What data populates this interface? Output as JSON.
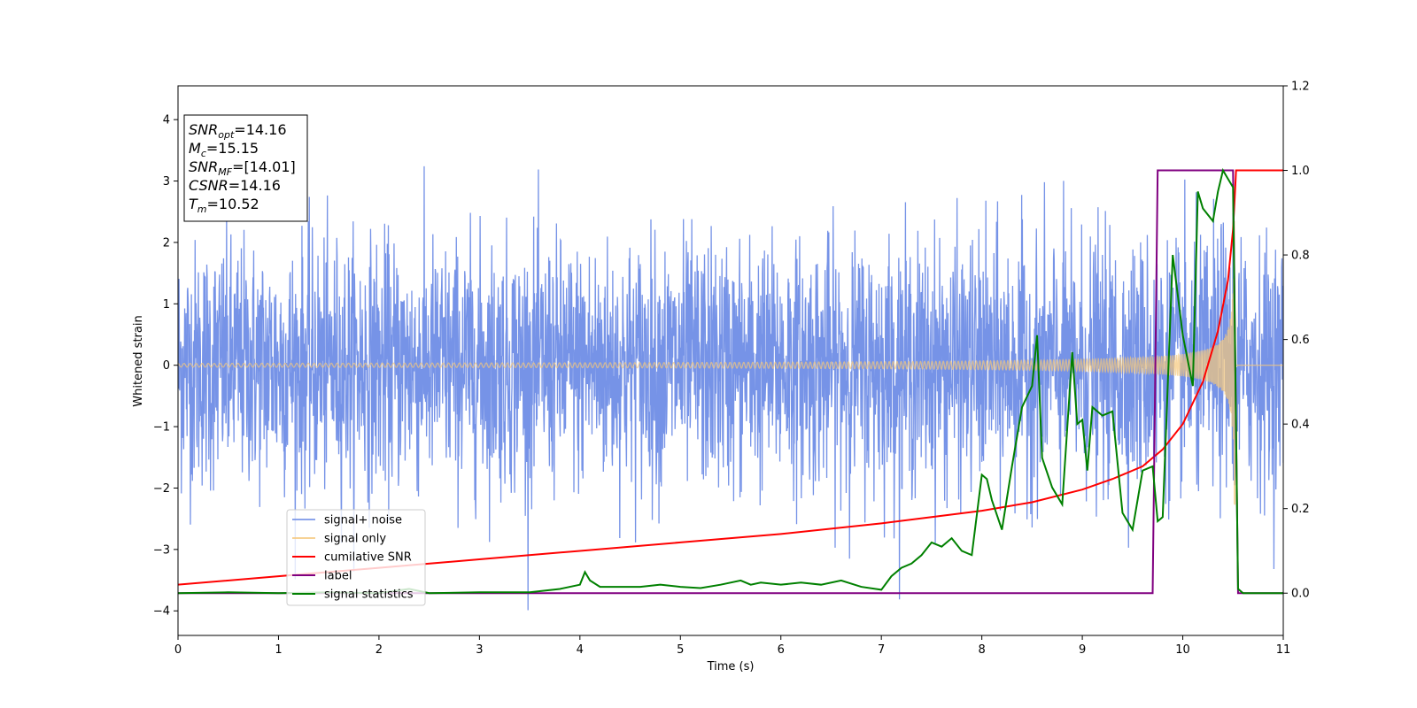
{
  "chart_data": {
    "type": "line",
    "xlabel": "Time (s)",
    "ylabel": "Whitened strain",
    "xlim": [
      0,
      11
    ],
    "ylim_left": [
      -4.4,
      4.55
    ],
    "ylim_right": [
      -0.1,
      1.2
    ],
    "x_ticks": [
      "0",
      "1",
      "2",
      "3",
      "4",
      "5",
      "6",
      "7",
      "8",
      "9",
      "10",
      "11"
    ],
    "y_ticks_left": [
      "−4",
      "−3",
      "−2",
      "−1",
      "0",
      "1",
      "2",
      "3",
      "4"
    ],
    "y_ticks_right": [
      "0.0",
      "0.2",
      "0.4",
      "0.6",
      "0.8",
      "1.0",
      "1.2"
    ],
    "grid": false,
    "legend_position": "lower-left",
    "info_box": {
      "position": "top-left",
      "lines": [
        {
          "sym": "SNR",
          "sub": "opt",
          "value": "=14.16"
        },
        {
          "sym": "M",
          "sub": "c",
          "value": "=15.15"
        },
        {
          "sym": "SNR",
          "sub": "MF",
          "value": "=[14.01]"
        },
        {
          "sym": "CSNR",
          "sub": "",
          "value": "=14.16"
        },
        {
          "sym": "T",
          "sub": "m",
          "value": "=10.52"
        }
      ]
    },
    "series": [
      {
        "name": "signal+ noise",
        "axis": "left",
        "color": "#6f8de6",
        "description_values": {
          "noise_sigma": 1.0,
          "peak_abs": 4.17
        }
      },
      {
        "name": "signal only",
        "axis": "left",
        "color": "#f5c77a",
        "description_values": {
          "amplitude_start": 0.03,
          "amplitude_at_merger": 2.35,
          "merger_time": 10.52
        }
      },
      {
        "name": "cumilative SNR",
        "axis": "right",
        "color": "#ff0000",
        "x": [
          0,
          1,
          2,
          3,
          4,
          5,
          6,
          7,
          7.5,
          8,
          8.5,
          9,
          9.3,
          9.6,
          9.8,
          10.0,
          10.2,
          10.35,
          10.45,
          10.5,
          10.52,
          10.53,
          11
        ],
        "y": [
          0.02,
          0.04,
          0.06,
          0.08,
          0.1,
          0.12,
          0.14,
          0.165,
          0.18,
          0.195,
          0.215,
          0.245,
          0.27,
          0.3,
          0.34,
          0.4,
          0.5,
          0.62,
          0.74,
          0.86,
          0.95,
          1.0,
          1.0
        ]
      },
      {
        "name": "label",
        "axis": "right",
        "color": "#800080",
        "x": [
          0,
          9.7,
          9.75,
          10.5,
          10.55,
          11
        ],
        "y": [
          0.0,
          0.0,
          1.0,
          1.0,
          0.0,
          0.0
        ]
      },
      {
        "name": "signal statistics",
        "axis": "right",
        "color": "#008000",
        "x": [
          0,
          0.5,
          1,
          1.5,
          2,
          2.3,
          2.5,
          3,
          3.5,
          3.8,
          4.0,
          4.05,
          4.1,
          4.2,
          4.4,
          4.6,
          4.8,
          5.0,
          5.2,
          5.4,
          5.6,
          5.7,
          5.8,
          6.0,
          6.2,
          6.4,
          6.6,
          6.8,
          7.0,
          7.1,
          7.2,
          7.3,
          7.4,
          7.5,
          7.6,
          7.7,
          7.8,
          7.9,
          8.0,
          8.05,
          8.1,
          8.2,
          8.3,
          8.4,
          8.5,
          8.55,
          8.6,
          8.7,
          8.8,
          8.9,
          8.95,
          9.0,
          9.05,
          9.1,
          9.2,
          9.3,
          9.4,
          9.5,
          9.6,
          9.7,
          9.75,
          9.8,
          9.9,
          10.0,
          10.1,
          10.15,
          10.2,
          10.3,
          10.35,
          10.4,
          10.45,
          10.5,
          10.55,
          10.6,
          11
        ],
        "y": [
          0.0,
          0.002,
          0.0,
          0.002,
          0.0,
          0.01,
          0.0,
          0.002,
          0.002,
          0.01,
          0.02,
          0.05,
          0.03,
          0.015,
          0.015,
          0.015,
          0.02,
          0.015,
          0.012,
          0.02,
          0.03,
          0.02,
          0.025,
          0.02,
          0.025,
          0.02,
          0.03,
          0.015,
          0.008,
          0.04,
          0.06,
          0.07,
          0.09,
          0.12,
          0.11,
          0.13,
          0.1,
          0.09,
          0.28,
          0.27,
          0.22,
          0.15,
          0.3,
          0.44,
          0.49,
          0.61,
          0.32,
          0.25,
          0.21,
          0.57,
          0.4,
          0.41,
          0.29,
          0.44,
          0.42,
          0.43,
          0.19,
          0.15,
          0.29,
          0.3,
          0.17,
          0.18,
          0.8,
          0.61,
          0.49,
          0.95,
          0.91,
          0.88,
          0.95,
          1.0,
          0.98,
          0.96,
          0.01,
          0.0,
          0.0
        ]
      }
    ]
  }
}
